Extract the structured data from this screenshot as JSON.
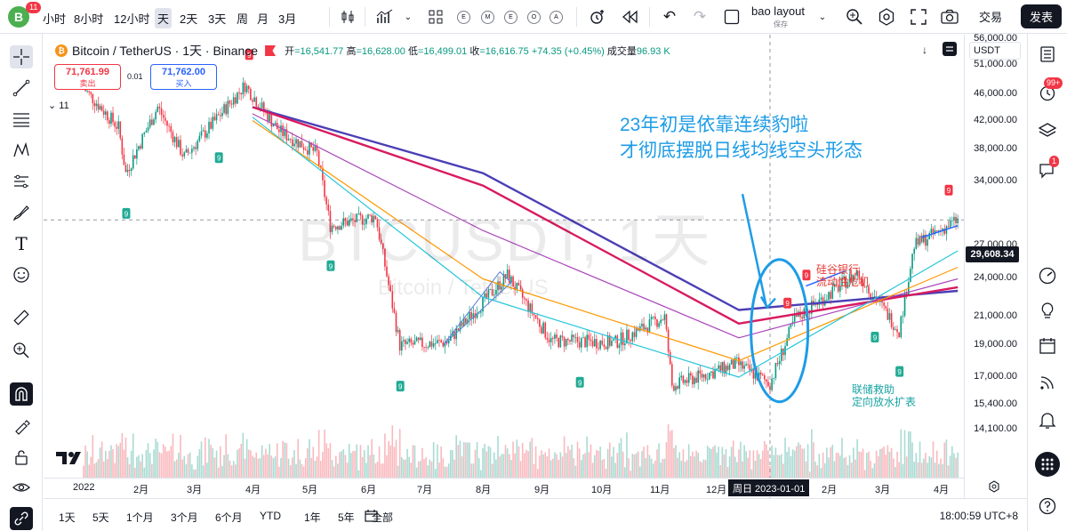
{
  "header": {
    "avatar_letter": "B",
    "avatar_badge": "11",
    "timeframes": [
      "小时",
      "8小时",
      "12小时",
      "天",
      "2天",
      "3天",
      "周",
      "月",
      "3月"
    ],
    "active_timeframe": "天",
    "indicator_buttons": [
      "E",
      "M",
      "E",
      "O",
      "A"
    ],
    "layout_name": "bao layout",
    "layout_status": "保存",
    "trade_label": "交易",
    "publish_label": "发表"
  },
  "legend": {
    "coin_glyph": "₿",
    "symbol": "Bitcoin / TetherUS · 1天 · Binance",
    "open_label": "开",
    "open": "=16,541.77",
    "high_label": "高",
    "high": "=16,628.00",
    "low_label": "低",
    "low": "=16,499.01",
    "close_label": "收",
    "close": "=16,616.75",
    "change": "+74.35 (+0.45%)",
    "volume_label": "成交量",
    "volume": "96.93 K",
    "indicator_count": "11"
  },
  "orderbox": {
    "sell_price": "71,761.99",
    "sell_label": "卖出",
    "spread": "0.01",
    "buy_price": "71,762.00",
    "buy_label": "买入"
  },
  "watermark": {
    "main": "BTCUSDT, 1天",
    "sub": "Bitcoin / TetherUS"
  },
  "annotations": {
    "main_line1": "23年初是依靠连续豹啦",
    "main_line2": "才彻底摆脱日线均线空头形态",
    "svb_line1": "硅谷银行",
    "svb_line2": "流动性危机",
    "fed_line1": "联储救助",
    "fed_line2": "定向放水扩表"
  },
  "price_axis": {
    "currency": "USDT",
    "labels": [
      "56,000.00",
      "51,000.00",
      "46,000.00",
      "42,000.00",
      "38,000.00",
      "34,000.00",
      "27,000.00",
      "24,000.00",
      "21,000.00",
      "19,000.00",
      "17,000.00",
      "15,400.00",
      "14,100.00"
    ],
    "current_price": "29,608.34"
  },
  "time_axis": {
    "labels": [
      "2022",
      "2月",
      "3月",
      "4月",
      "5月",
      "6月",
      "7月",
      "8月",
      "9月",
      "10月",
      "11月",
      "12月",
      "2月",
      "3月",
      "4月"
    ],
    "crosshair_label": "周日 2023-01-01"
  },
  "bottom_bar": {
    "ranges": [
      "1天",
      "5天",
      "1个月",
      "3个月",
      "6个月",
      "YTD",
      "1年",
      "5年",
      "全部"
    ],
    "clock": "18:00:59 UTC+8"
  },
  "right_toolbar": {
    "alerts_badge": "99+",
    "chat_badge": "1"
  },
  "chart_data": {
    "type": "candlestick",
    "symbol": "BTCUSDT",
    "interval": "1天",
    "y_scale": "log",
    "ylim": [
      14100,
      60000
    ],
    "x_range": [
      "2022-01-01",
      "2023-04-10"
    ],
    "close_path": [
      {
        "date": "2022-01-01",
        "close": 47000
      },
      {
        "date": "2022-01-20",
        "close": 41000
      },
      {
        "date": "2022-01-24",
        "close": 35000
      },
      {
        "date": "2022-02-10",
        "close": 44000
      },
      {
        "date": "2022-02-24",
        "close": 37000
      },
      {
        "date": "2022-03-28",
        "close": 47500
      },
      {
        "date": "2022-04-15",
        "close": 40500
      },
      {
        "date": "2022-05-05",
        "close": 37500
      },
      {
        "date": "2022-05-12",
        "close": 29000
      },
      {
        "date": "2022-06-05",
        "close": 30000
      },
      {
        "date": "2022-06-18",
        "close": 19000
      },
      {
        "date": "2022-07-13",
        "close": 19200
      },
      {
        "date": "2022-08-14",
        "close": 24300
      },
      {
        "date": "2022-09-06",
        "close": 19300
      },
      {
        "date": "2022-10-10",
        "close": 19200
      },
      {
        "date": "2022-11-05",
        "close": 21000
      },
      {
        "date": "2022-11-09",
        "close": 16500
      },
      {
        "date": "2022-12-14",
        "close": 17800
      },
      {
        "date": "2023-01-01",
        "close": 16616.75
      },
      {
        "date": "2023-01-14",
        "close": 20800
      },
      {
        "date": "2023-02-16",
        "close": 24500
      },
      {
        "date": "2023-03-10",
        "close": 20000
      },
      {
        "date": "2023-03-18",
        "close": 27000
      },
      {
        "date": "2023-04-10",
        "close": 29608.34
      }
    ],
    "moving_averages": [
      {
        "color": "#4b3fb5",
        "points": [
          {
            "date": "2022-04-01",
            "value": 44000
          },
          {
            "date": "2022-08-01",
            "value": 35000
          },
          {
            "date": "2022-12-15",
            "value": 21500
          },
          {
            "date": "2023-04-10",
            "value": 23000
          }
        ]
      },
      {
        "color": "#d81b60",
        "points": [
          {
            "date": "2022-04-01",
            "value": 44000
          },
          {
            "date": "2022-08-01",
            "value": 33500
          },
          {
            "date": "2022-12-15",
            "value": 20500
          },
          {
            "date": "2023-04-10",
            "value": 23300
          }
        ]
      },
      {
        "color": "#ab47bc",
        "points": [
          {
            "date": "2022-04-01",
            "value": 43000
          },
          {
            "date": "2022-08-01",
            "value": 28500
          },
          {
            "date": "2022-12-15",
            "value": 19500
          },
          {
            "date": "2023-04-10",
            "value": 24000
          }
        ]
      },
      {
        "color": "#ff9800",
        "points": [
          {
            "date": "2022-04-01",
            "value": 42000
          },
          {
            "date": "2022-08-01",
            "value": 24000
          },
          {
            "date": "2022-12-15",
            "value": 18000
          },
          {
            "date": "2023-04-10",
            "value": 25000
          }
        ]
      },
      {
        "color": "#26c6da",
        "points": [
          {
            "date": "2022-04-01",
            "value": 42500
          },
          {
            "date": "2022-08-01",
            "value": 22500
          },
          {
            "date": "2022-12-15",
            "value": 17000
          },
          {
            "date": "2023-04-10",
            "value": 26500
          }
        ]
      }
    ],
    "signals_9_green_dates": [
      "2022-01-24",
      "2022-03-14",
      "2022-05-12",
      "2022-06-18",
      "2022-09-21",
      "2023-03-10",
      "2023-02-25"
    ],
    "signals_9_red_dates": [
      "2022-03-30",
      "2023-01-10",
      "2023-01-20",
      "2023-04-05"
    ]
  }
}
